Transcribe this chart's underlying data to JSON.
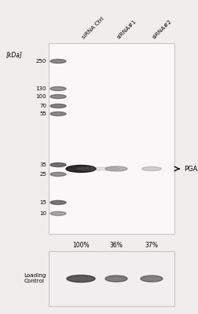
{
  "fig_width": 2.52,
  "fig_height": 4.0,
  "dpi": 100,
  "bg_color": "#f0eeec",
  "kdal_label": "[kDa]",
  "mw_markers": [
    250,
    130,
    100,
    70,
    55,
    35,
    25,
    15,
    10
  ],
  "lane_labels": [
    "siRNA Ctrl",
    "siRNA#1",
    "siRNA#2"
  ],
  "pgam5_label": "PGAM5",
  "pct_labels": [
    "100%",
    "36%",
    "37%"
  ],
  "loading_ctrl_label": "Loading\nControl"
}
